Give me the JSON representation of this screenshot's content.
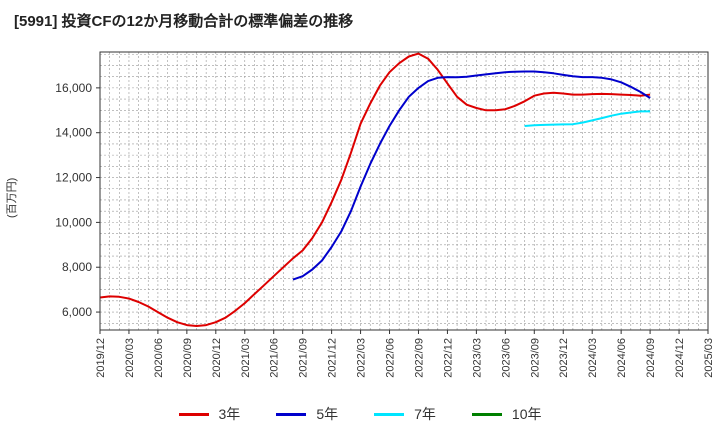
{
  "title": "[5991]  投資CFの12か月移動合計の標準偏差の推移",
  "ylabel": "(百万円)",
  "chart_data": {
    "type": "line",
    "title": "[5991]  投資CFの12か月移動合計の標準偏差の推移",
    "ylabel": "(百万円)",
    "xlabel": "",
    "ylim": [
      5200,
      17600
    ],
    "xlim": [
      "2019-12",
      "2025-03"
    ],
    "grid": true,
    "legend_position": "bottom",
    "y_ticks": [
      "6,000",
      "8,000",
      "10,000",
      "12,000",
      "14,000",
      "16,000"
    ],
    "x_ticks": [
      "2019/12",
      "2020/03",
      "2020/06",
      "2020/09",
      "2020/12",
      "2021/03",
      "2021/06",
      "2021/09",
      "2021/12",
      "2022/03",
      "2022/06",
      "2022/09",
      "2022/12",
      "2023/03",
      "2023/06",
      "2023/09",
      "2023/12",
      "2024/03",
      "2024/06",
      "2024/09",
      "2024/12",
      "2025/03"
    ],
    "series": [
      {
        "name": "3年",
        "color": "#dd0000",
        "x": [
          "2019-12",
          "2020-01",
          "2020-02",
          "2020-03",
          "2020-04",
          "2020-05",
          "2020-06",
          "2020-07",
          "2020-08",
          "2020-09",
          "2020-10",
          "2020-11",
          "2020-12",
          "2021-01",
          "2021-02",
          "2021-03",
          "2021-04",
          "2021-05",
          "2021-06",
          "2021-07",
          "2021-08",
          "2021-09",
          "2021-10",
          "2021-11",
          "2021-12",
          "2022-01",
          "2022-02",
          "2022-03",
          "2022-04",
          "2022-05",
          "2022-06",
          "2022-07",
          "2022-08",
          "2022-09",
          "2022-10",
          "2022-11",
          "2022-12",
          "2023-01",
          "2023-02",
          "2023-03",
          "2023-04",
          "2023-05",
          "2023-06",
          "2023-07",
          "2023-08",
          "2023-09",
          "2023-10",
          "2023-11",
          "2023-12",
          "2024-01",
          "2024-02",
          "2024-03",
          "2024-04",
          "2024-05",
          "2024-06",
          "2024-07",
          "2024-08",
          "2024-09"
        ],
        "values": [
          6650,
          6700,
          6680,
          6600,
          6450,
          6250,
          6000,
          5750,
          5550,
          5420,
          5380,
          5420,
          5550,
          5750,
          6050,
          6400,
          6800,
          7200,
          7600,
          8000,
          8400,
          8750,
          9300,
          10000,
          10900,
          11900,
          13100,
          14400,
          15300,
          16100,
          16700,
          17100,
          17400,
          17530,
          17300,
          16800,
          16200,
          15600,
          15250,
          15100,
          15000,
          15000,
          15050,
          15200,
          15400,
          15650,
          15750,
          15780,
          15750,
          15700,
          15700,
          15720,
          15730,
          15720,
          15700,
          15680,
          15650,
          15700
        ]
      },
      {
        "name": "5年",
        "color": "#0000cc",
        "x": [
          "2021-08",
          "2021-09",
          "2021-10",
          "2021-11",
          "2021-12",
          "2022-01",
          "2022-02",
          "2022-03",
          "2022-04",
          "2022-05",
          "2022-06",
          "2022-07",
          "2022-08",
          "2022-09",
          "2022-10",
          "2022-11",
          "2022-12",
          "2023-01",
          "2023-02",
          "2023-03",
          "2023-04",
          "2023-05",
          "2023-06",
          "2023-07",
          "2023-08",
          "2023-09",
          "2023-10",
          "2023-11",
          "2023-12",
          "2024-01",
          "2024-02",
          "2024-03",
          "2024-04",
          "2024-05",
          "2024-06",
          "2024-07",
          "2024-08",
          "2024-09"
        ],
        "values": [
          7450,
          7600,
          7900,
          8300,
          8900,
          9600,
          10500,
          11600,
          12600,
          13500,
          14300,
          15000,
          15600,
          16000,
          16300,
          16450,
          16480,
          16470,
          16500,
          16550,
          16600,
          16650,
          16700,
          16720,
          16730,
          16730,
          16700,
          16650,
          16580,
          16520,
          16480,
          16480,
          16450,
          16380,
          16250,
          16050,
          15820,
          15550
        ]
      },
      {
        "name": "7年",
        "color": "#00e5ff",
        "x": [
          "2023-08",
          "2023-09",
          "2023-10",
          "2023-11",
          "2023-12",
          "2024-01",
          "2024-02",
          "2024-03",
          "2024-04",
          "2024-05",
          "2024-06",
          "2024-07",
          "2024-08",
          "2024-09"
        ],
        "values": [
          14300,
          14330,
          14350,
          14360,
          14370,
          14380,
          14450,
          14550,
          14650,
          14760,
          14850,
          14900,
          14950,
          14950
        ]
      },
      {
        "name": "10年",
        "color": "#008000",
        "x": [],
        "values": []
      }
    ]
  }
}
